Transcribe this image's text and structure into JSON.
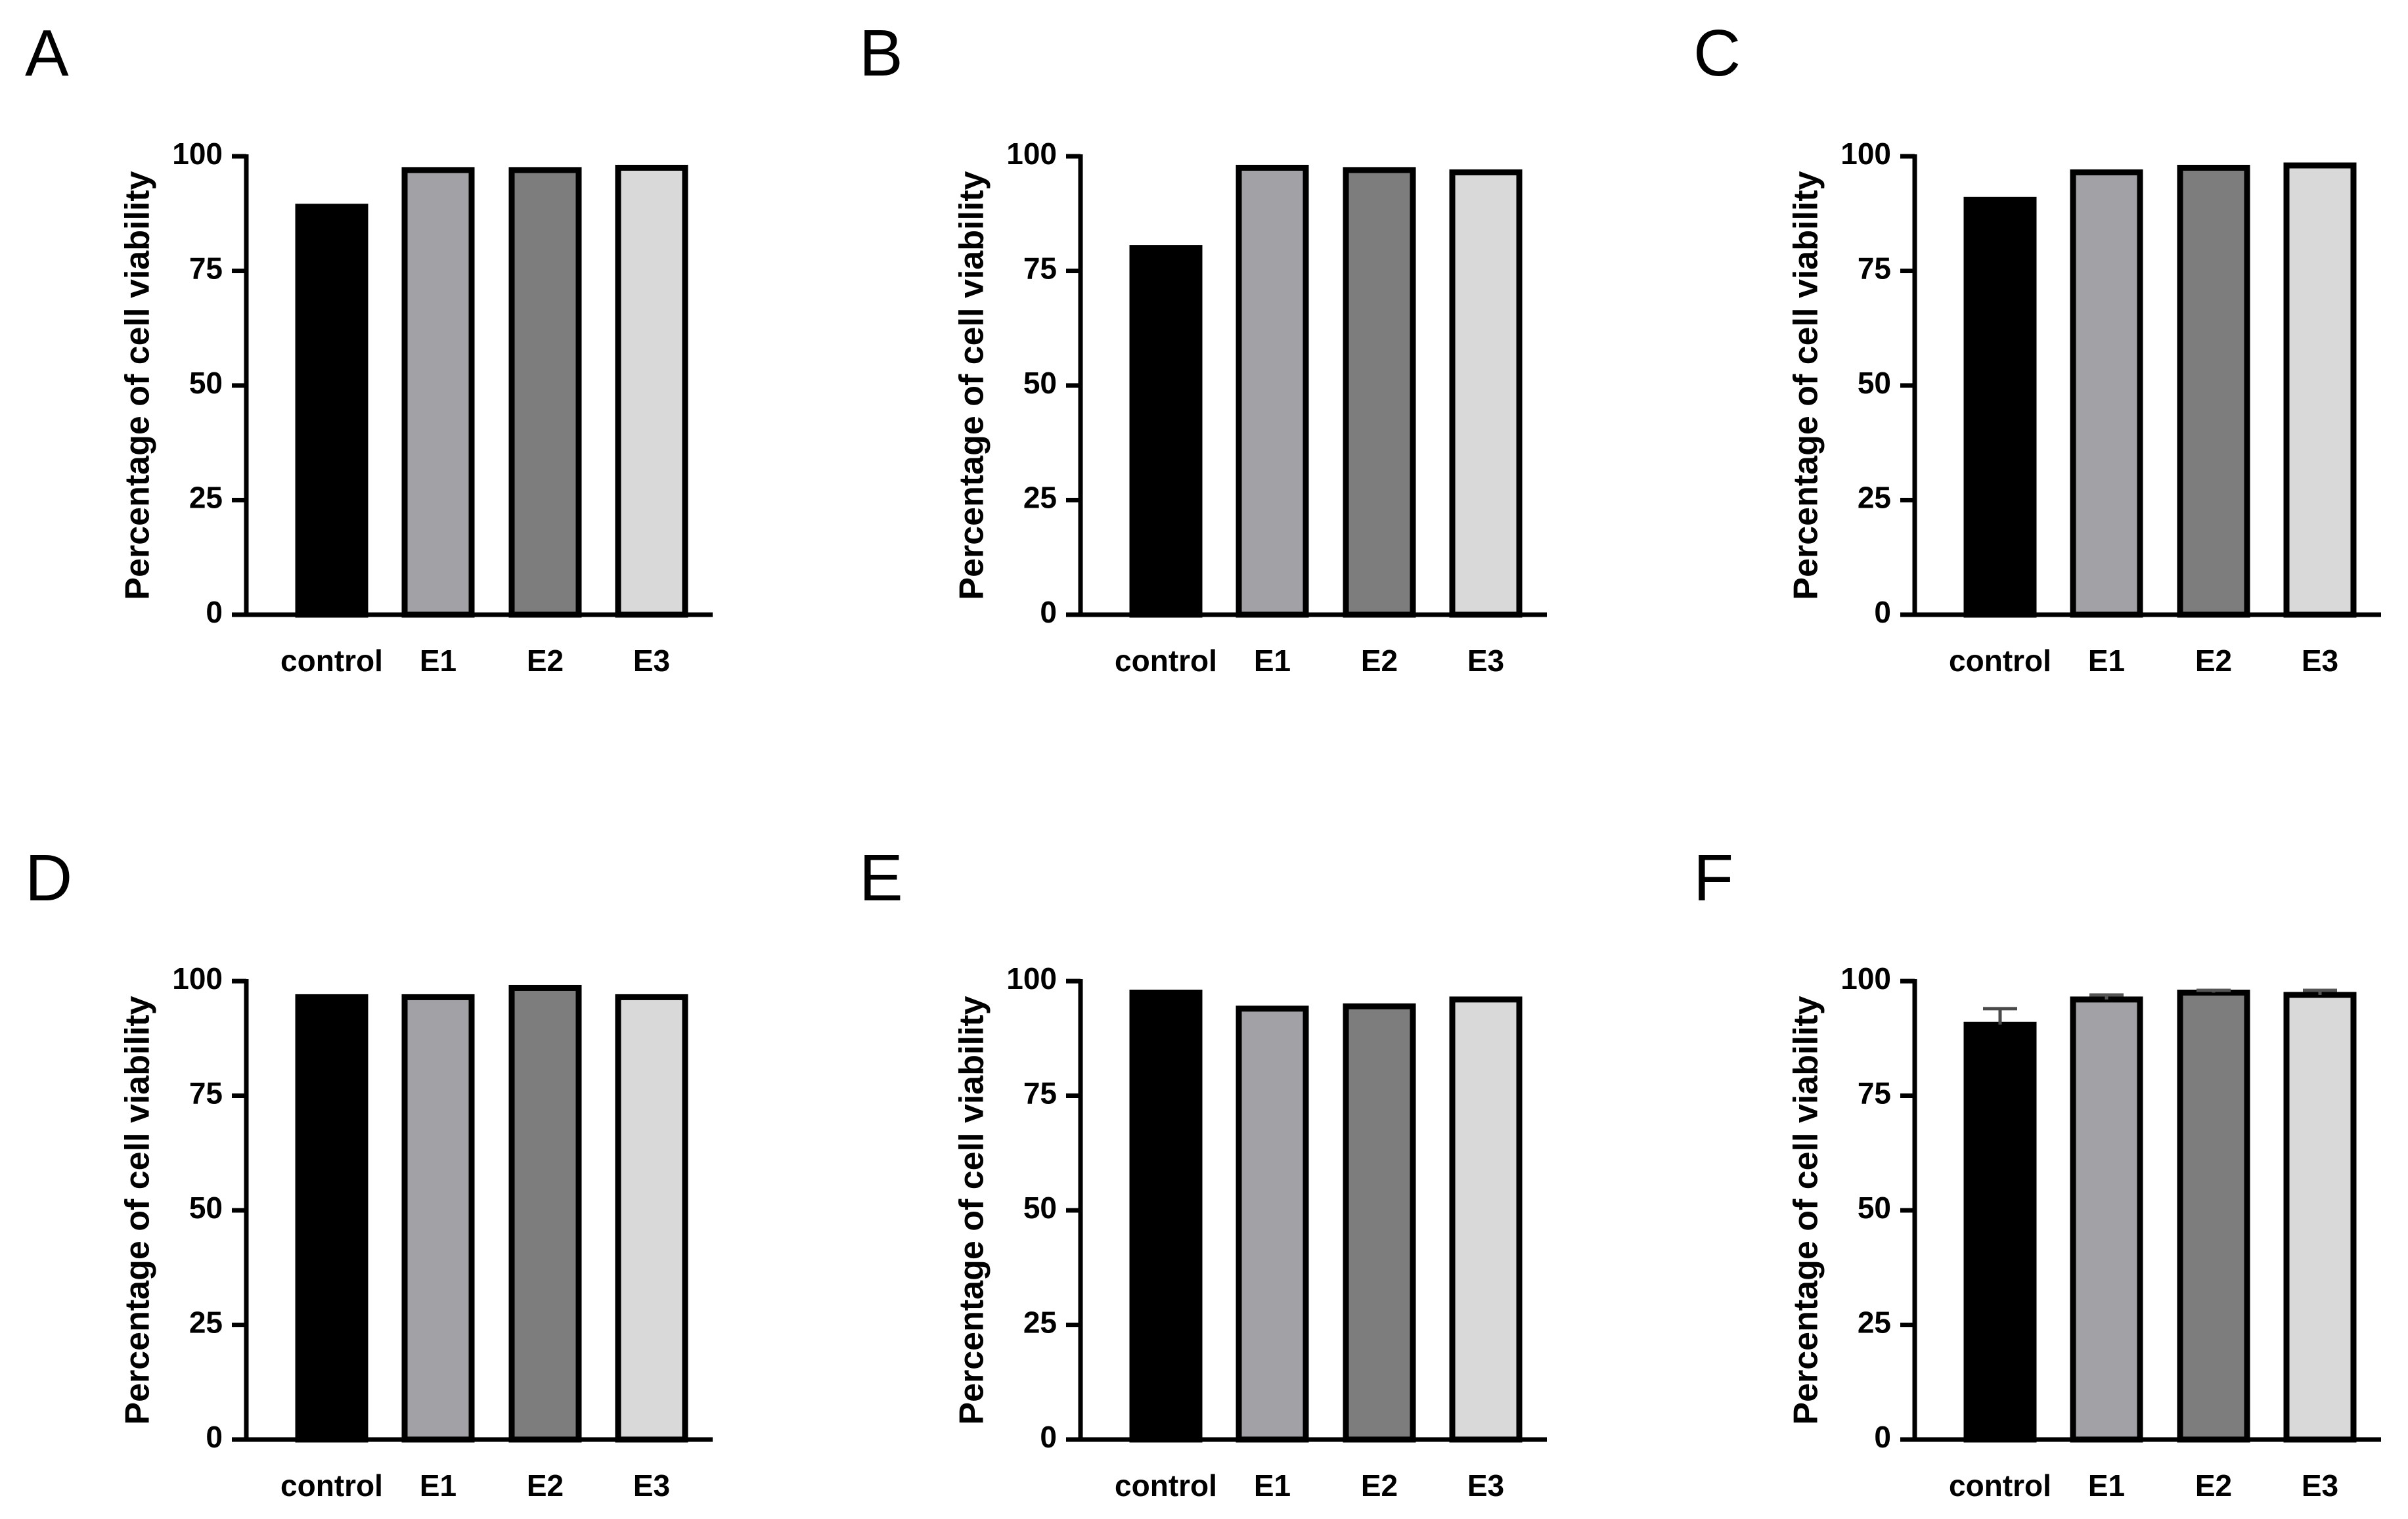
{
  "chart_data": [
    {
      "panel": "A",
      "type": "bar",
      "categories": [
        "control",
        "E1",
        "E2",
        "E3"
      ],
      "values": [
        89,
        97,
        97,
        97.5
      ],
      "ylabel": "Percentage of cell viability",
      "xlabel": "",
      "ylim": [
        0,
        100
      ],
      "yticks": [
        "0",
        "25",
        "50",
        "75",
        "100"
      ],
      "colors": [
        "#000000",
        "#a1a1a6",
        "#7d7d7d",
        "#d9d9d9"
      ]
    },
    {
      "panel": "B",
      "type": "bar",
      "categories": [
        "control",
        "E1",
        "E2",
        "E3"
      ],
      "values": [
        80,
        97.5,
        97,
        96.5
      ],
      "ylabel": "Percentage of cell viability",
      "xlabel": "",
      "ylim": [
        0,
        100
      ],
      "yticks": [
        "0",
        "25",
        "50",
        "75",
        "100"
      ],
      "colors": [
        "#000000",
        "#a1a1a6",
        "#7d7d7d",
        "#d9d9d9"
      ]
    },
    {
      "panel": "C",
      "type": "bar",
      "categories": [
        "control",
        "E1",
        "E2",
        "E3"
      ],
      "values": [
        90.5,
        96.5,
        97.5,
        98
      ],
      "ylabel": "Percentage of cell viability",
      "xlabel": "",
      "ylim": [
        0,
        100
      ],
      "yticks": [
        "0",
        "25",
        "50",
        "75",
        "100"
      ],
      "colors": [
        "#000000",
        "#a1a1a6",
        "#7d7d7d",
        "#d9d9d9"
      ]
    },
    {
      "panel": "D",
      "type": "bar",
      "categories": [
        "control",
        "E1",
        "E2",
        "E3"
      ],
      "values": [
        96.5,
        96.5,
        98.5,
        96.5
      ],
      "ylabel": "Percentage of cell viability",
      "xlabel": "",
      "ylim": [
        0,
        100
      ],
      "yticks": [
        "0",
        "25",
        "50",
        "75",
        "100"
      ],
      "colors": [
        "#000000",
        "#a1a1a6",
        "#7d7d7d",
        "#d9d9d9"
      ]
    },
    {
      "panel": "E",
      "type": "bar",
      "categories": [
        "control",
        "E1",
        "E2",
        "E3"
      ],
      "values": [
        97.5,
        94,
        94.5,
        96
      ],
      "ylabel": "Percentage of cell viability",
      "xlabel": "",
      "ylim": [
        0,
        100
      ],
      "yticks": [
        "0",
        "25",
        "50",
        "75",
        "100"
      ],
      "colors": [
        "#000000",
        "#a1a1a6",
        "#7d7d7d",
        "#d9d9d9"
      ]
    },
    {
      "panel": "F",
      "type": "bar",
      "categories": [
        "control",
        "E1",
        "E2",
        "E3"
      ],
      "values": [
        90.5,
        96,
        97.5,
        97
      ],
      "errors": [
        3.5,
        1,
        0.5,
        1
      ],
      "ylabel": "Percentage of cell viability",
      "xlabel": "",
      "ylim": [
        0,
        100
      ],
      "yticks": [
        "0",
        "25",
        "50",
        "75",
        "100"
      ],
      "colors": [
        "#000000",
        "#a1a1a6",
        "#7d7d7d",
        "#d9d9d9"
      ]
    }
  ]
}
